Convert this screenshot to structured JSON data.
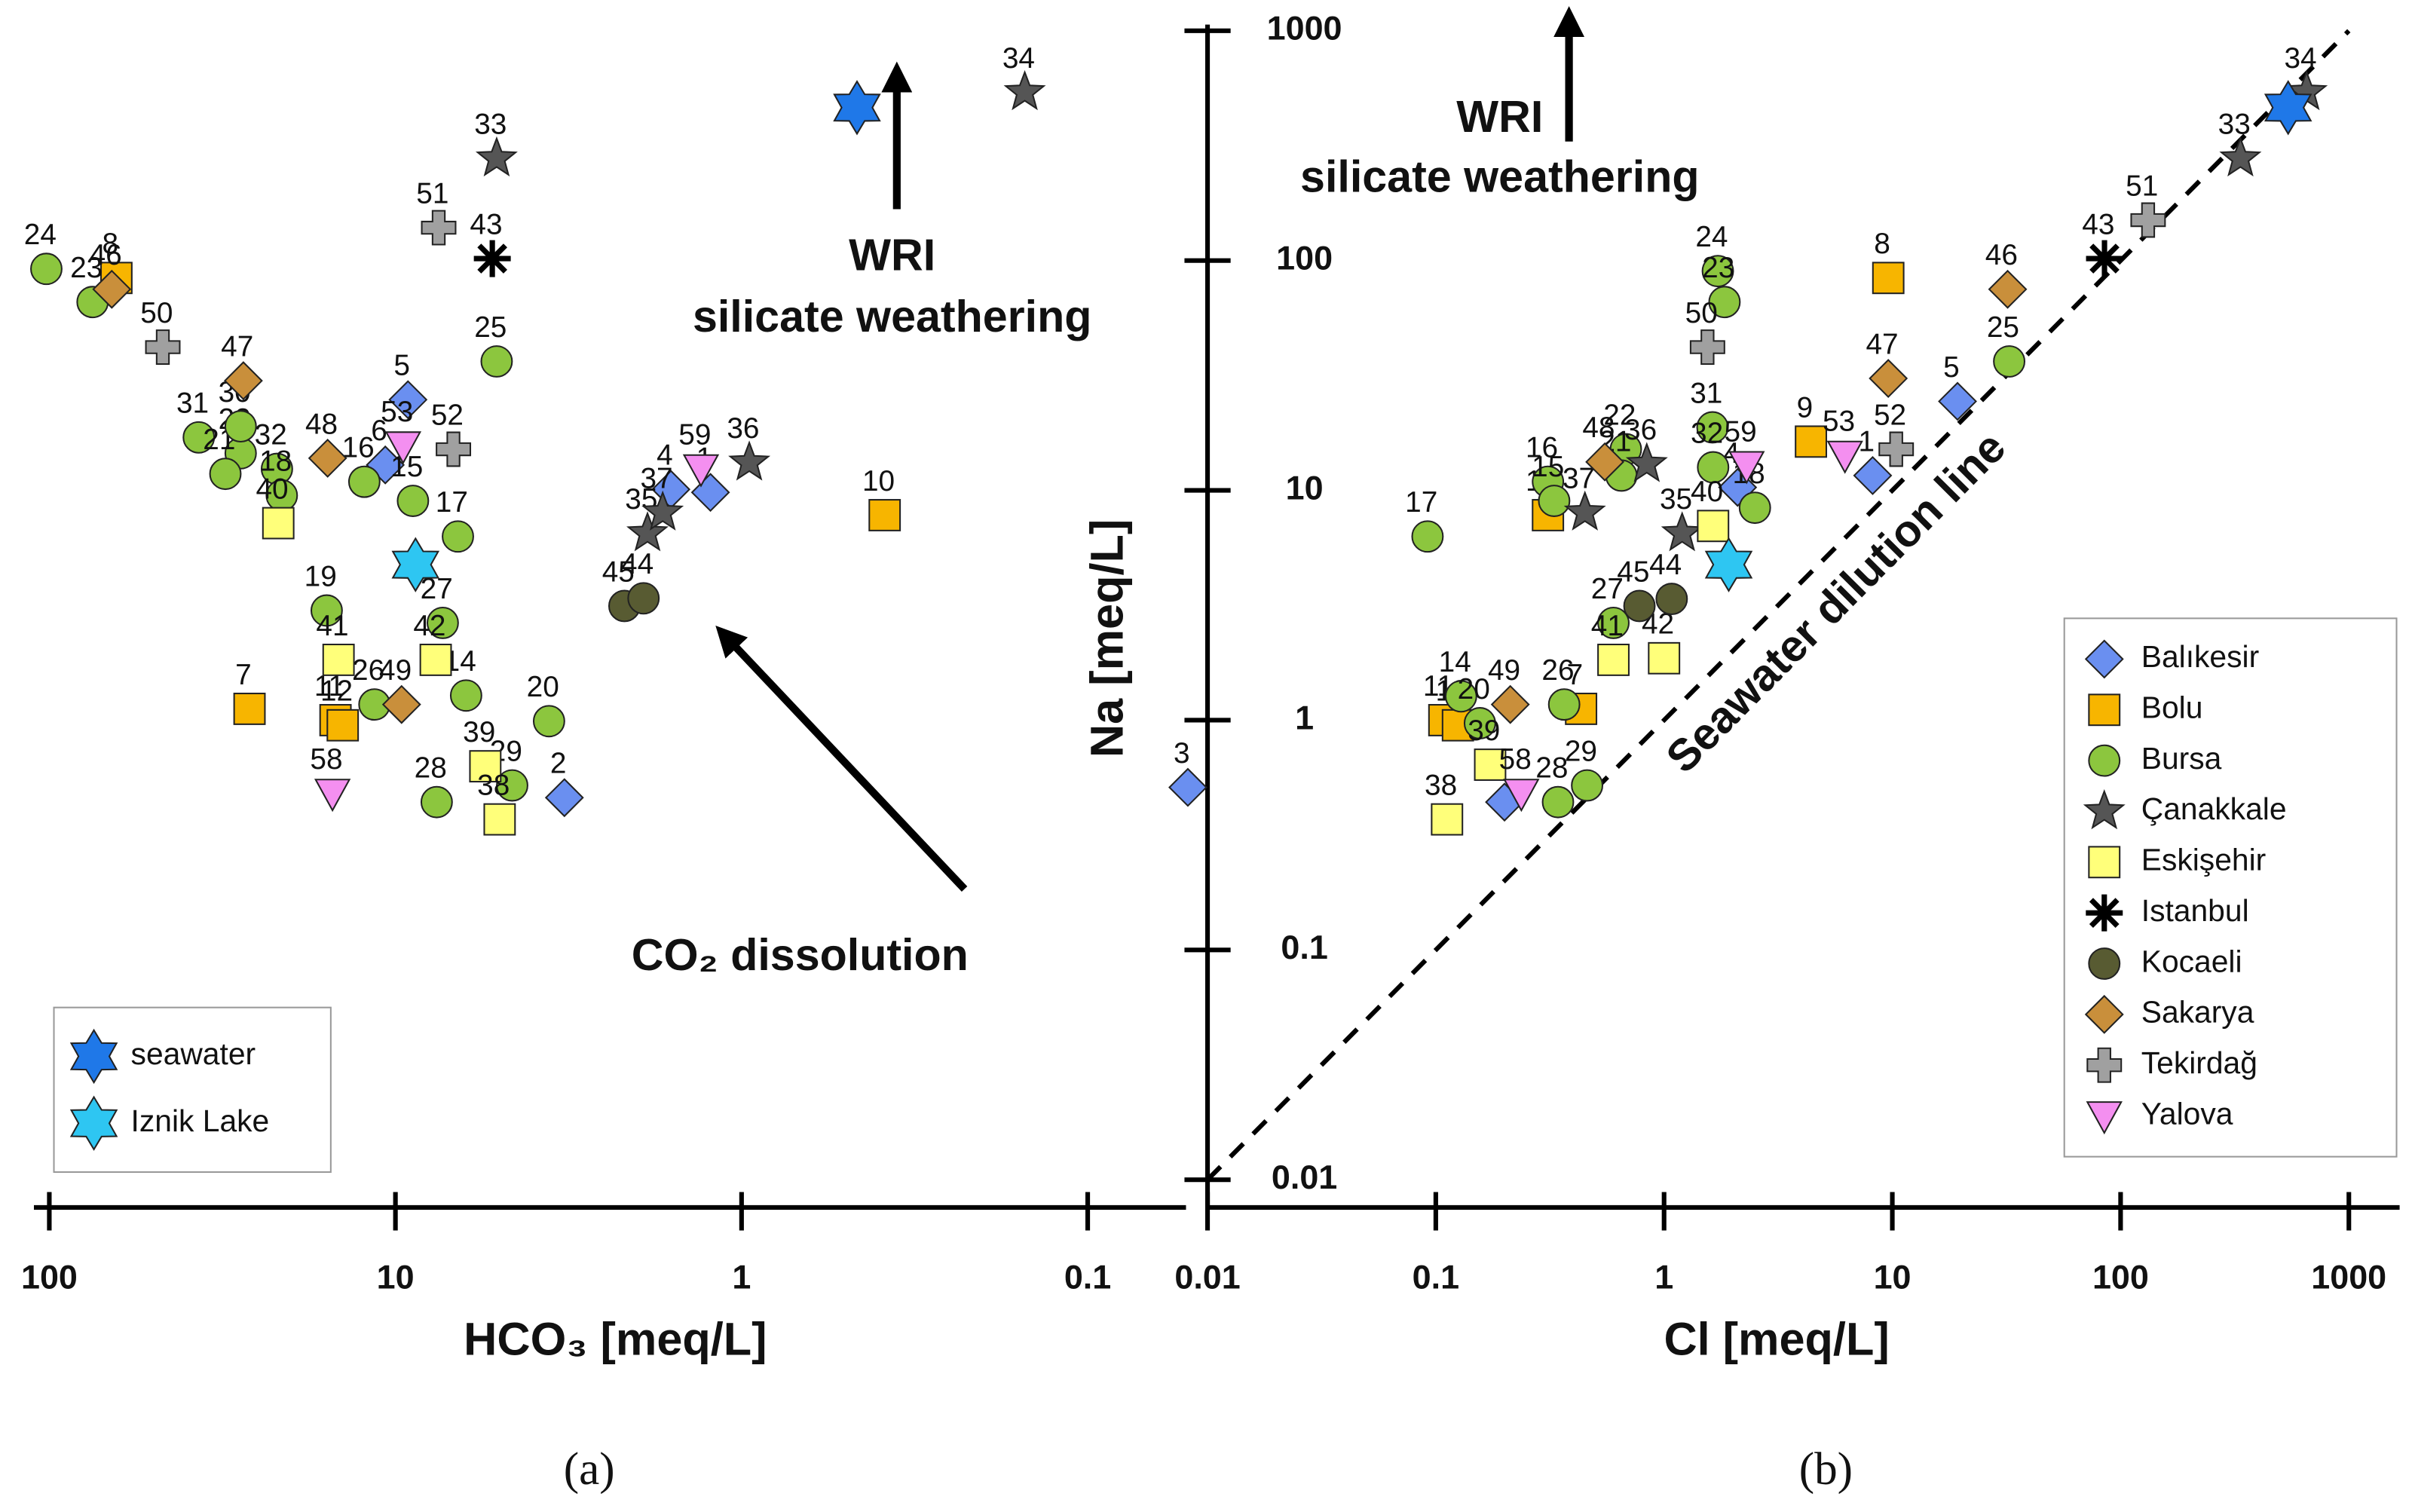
{
  "chart_data": [
    {
      "type": "scatter",
      "panel_label": "(a)",
      "xlabel": "HCO₃ [meq/L]",
      "xscale": "log",
      "yscale": "log",
      "xlim": [
        110,
        0.052
      ],
      "xticks": [
        100,
        10,
        1,
        0.1
      ],
      "ylim": [
        0.01,
        1000
      ],
      "legend": "lower left",
      "annotations": [
        "WRI",
        "silicate weathering",
        "CO₂ dissolution"
      ],
      "series": [
        {
          "color": "#6a8ff0",
          "marker": "diamond",
          "x": [
            10.7,
            9.2,
            3.25,
            1.6,
            1.23
          ],
          "values": [
            12.9,
            24.8,
            0.46,
            10.1,
            9.8
          ],
          "labels": [
            "6",
            "5",
            "2",
            "4",
            "1"
          ]
        },
        {
          "color": "#f7b500",
          "marker": "square",
          "x": [
            64,
            26.4,
            14.9,
            14.2,
            0.386
          ],
          "values": [
            84,
            1.12,
            1.0,
            0.95,
            7.8
          ],
          "labels": [
            "8",
            "7",
            "11",
            "12",
            "10"
          ]
        },
        {
          "color": "#8cc63e",
          "marker": "circle",
          "x": [
            102,
            75,
            37,
            28,
            31,
            22,
            21.3,
            12.3,
            8.9,
            5.1,
            6.6,
            7.3,
            15.8,
            11.5,
            6.25,
            3.6,
            7.6,
            4.6,
            28
          ],
          "values": [
            92,
            66,
            17,
            14.5,
            11.8,
            12.4,
            9.5,
            10.9,
            9.0,
            36.4,
            6.3,
            2.65,
            3.0,
            1.17,
            1.28,
            0.99,
            0.44,
            0.52,
            19
          ],
          "labels": [
            "24",
            "23",
            "31",
            "22",
            "21",
            "32",
            "18",
            "16",
            "15",
            "25",
            "17",
            "27",
            "19",
            "26",
            "14",
            "20",
            "28",
            "29",
            "30"
          ]
        },
        {
          "color": "#555555",
          "marker": "star",
          "x": [
            5.1,
            1.87,
            1.69,
            0.95,
            0.152
          ],
          "values": [
            278,
            6.5,
            8.0,
            13.2,
            540
          ],
          "labels": [
            "33",
            "35",
            "37",
            "36",
            "34"
          ]
        },
        {
          "color": "#ffff7a",
          "marker": "square",
          "x": [
            21.8,
            7.65,
            14.6,
            5.5,
            5.0
          ],
          "values": [
            7.2,
            1.83,
            1.83,
            0.63,
            0.37
          ],
          "labels": [
            "40",
            "42",
            "41",
            "39",
            "38"
          ]
        },
        {
          "color": "#000000",
          "marker": "asterisk",
          "x": [
            5.25
          ],
          "values": [
            102
          ],
          "labels": [
            "43"
          ]
        },
        {
          "color": "#585b32",
          "marker": "circle",
          "x": [
            2.18,
            1.92
          ],
          "values": [
            3.14,
            3.39
          ],
          "labels": [
            "45",
            "44"
          ]
        },
        {
          "color": "#c98f3b",
          "marker": "diamond",
          "x": [
            66,
            27.5,
            15.7,
            9.6
          ],
          "values": [
            75,
            30,
            13.8,
            1.17
          ],
          "labels": [
            "46",
            "47",
            "48",
            "49"
          ]
        },
        {
          "color": "#a0a0a0",
          "marker": "plus",
          "x": [
            47,
            7.5,
            6.8
          ],
          "values": [
            42,
            139,
            15.1
          ],
          "labels": [
            "50",
            "51",
            "52"
          ]
        },
        {
          "color": "#f48ff0",
          "marker": "triangle",
          "x": [
            9.5,
            15.2,
            1.31
          ],
          "values": [
            15.6,
            0.48,
            12.4
          ],
          "labels": [
            "53",
            "58",
            "59"
          ]
        },
        {
          "name": "seawater",
          "color": "#1f78e8",
          "marker": "hexagram",
          "x": [
            0.464
          ],
          "values": [
            463
          ]
        },
        {
          "name": "Iznik Lake",
          "color": "#2ec6f2",
          "marker": "hexagram",
          "x": [
            8.75
          ],
          "values": [
            4.75
          ]
        }
      ]
    },
    {
      "type": "scatter",
      "panel_label": "(b)",
      "xlabel": "Cl [meq/L]",
      "ylabel": "Na [meq/L]",
      "xscale": "log",
      "yscale": "log",
      "xlim": [
        0.01,
        1000
      ],
      "xticks": [
        0.01,
        0.1,
        1,
        10,
        100,
        1000
      ],
      "ylim": [
        0.01,
        1000
      ],
      "yticks": [
        0.01,
        0.1,
        1,
        10,
        100,
        1000
      ],
      "legend": "lower right",
      "annotations": [
        "WRI",
        "silicate weathering"
      ],
      "dilution_line": {
        "label": "Seawater dilution line",
        "x": [
          0.01,
          1000
        ],
        "y": [
          0.01,
          1000
        ]
      },
      "series": [
        {
          "name": "Balıkesir",
          "color": "#6a8ff0",
          "marker": "diamond",
          "x": [
            0.0082,
            0.2,
            2.1,
            19.3,
            8.2
          ],
          "values": [
            0.51,
            0.44,
            10.3,
            24.4,
            11.6
          ],
          "labels": [
            "3",
            "2",
            "4",
            "5",
            "1"
          ]
        },
        {
          "name": "Bolu",
          "color": "#f7b500",
          "marker": "square",
          "x": [
            0.109,
            0.125,
            0.433,
            0.31,
            9.6,
            4.4
          ],
          "values": [
            1.0,
            0.95,
            1.12,
            7.8,
            84,
            16.3
          ],
          "labels": [
            "11",
            "12",
            "7",
            "10",
            "8",
            "9"
          ]
        },
        {
          "name": "Bursa",
          "color": "#8cc63e",
          "marker": "circle",
          "x": [
            0.092,
            0.129,
            0.156,
            0.343,
            0.46,
            0.365,
            0.6,
            0.31,
            0.33,
            0.68,
            0.65,
            1.63,
            1.64,
            2.5,
            1.72,
            1.84,
            32.5
          ],
          "values": [
            6.3,
            1.27,
            0.97,
            0.44,
            0.52,
            1.17,
            2.65,
            10.9,
            9.0,
            15.1,
            11.6,
            18.8,
            12.6,
            8.4,
            90,
            66,
            36.4
          ],
          "labels": [
            "17",
            "14",
            "20",
            "28",
            "29",
            "26",
            "27",
            "16",
            "15",
            "22",
            "21",
            "31",
            "32",
            "18",
            "24",
            "23",
            "25"
          ]
        },
        {
          "name": "Çanakkale",
          "color": "#555555",
          "marker": "star",
          "x": [
            0.45,
            0.84,
            1.2,
            335,
            653
          ],
          "values": [
            8.0,
            13.0,
            6.5,
            278,
            540
          ],
          "labels": [
            "37",
            "36",
            "35",
            "33",
            "34"
          ]
        },
        {
          "name": "Eskişehir",
          "color": "#ffff7a",
          "marker": "square",
          "x": [
            0.112,
            0.173,
            0.6,
            1.0,
            1.64
          ],
          "values": [
            0.37,
            0.64,
            1.83,
            1.86,
            7.0
          ],
          "labels": [
            "38",
            "39",
            "41",
            "42",
            "40"
          ]
        },
        {
          "name": "Istanbul",
          "color": "#000000",
          "marker": "asterisk",
          "x": [
            85
          ],
          "values": [
            102
          ],
          "labels": [
            "43"
          ]
        },
        {
          "name": "Kocaeli",
          "color": "#585b32",
          "marker": "circle",
          "x": [
            0.78,
            1.08
          ],
          "values": [
            3.14,
            3.37
          ],
          "labels": [
            "45",
            "44"
          ]
        },
        {
          "name": "Sakarya",
          "color": "#c98f3b",
          "marker": "diamond",
          "x": [
            0.212,
            0.55,
            9.6,
            32
          ],
          "values": [
            1.17,
            13.3,
            30.7,
            75
          ],
          "labels": [
            "49",
            "48",
            "47",
            "46"
          ]
        },
        {
          "name": "Tekirdağ",
          "color": "#a0a0a0",
          "marker": "plus",
          "x": [
            1.55,
            10.4,
            132
          ],
          "values": [
            42,
            15.1,
            150
          ],
          "labels": [
            "50",
            "52",
            "51"
          ]
        },
        {
          "name": "Yalova",
          "color": "#f48ff0",
          "marker": "triangle",
          "x": [
            0.237,
            2.3,
            6.2
          ],
          "values": [
            0.48,
            12.8,
            14.2
          ],
          "labels": [
            "58",
            "59",
            "53"
          ]
        },
        {
          "color": "#1f78e8",
          "marker": "hexagram",
          "x": [
            542
          ],
          "values": [
            463
          ]
        },
        {
          "color": "#2ec6f2",
          "marker": "hexagram",
          "x": [
            1.92
          ],
          "values": [
            4.75
          ]
        }
      ]
    }
  ]
}
